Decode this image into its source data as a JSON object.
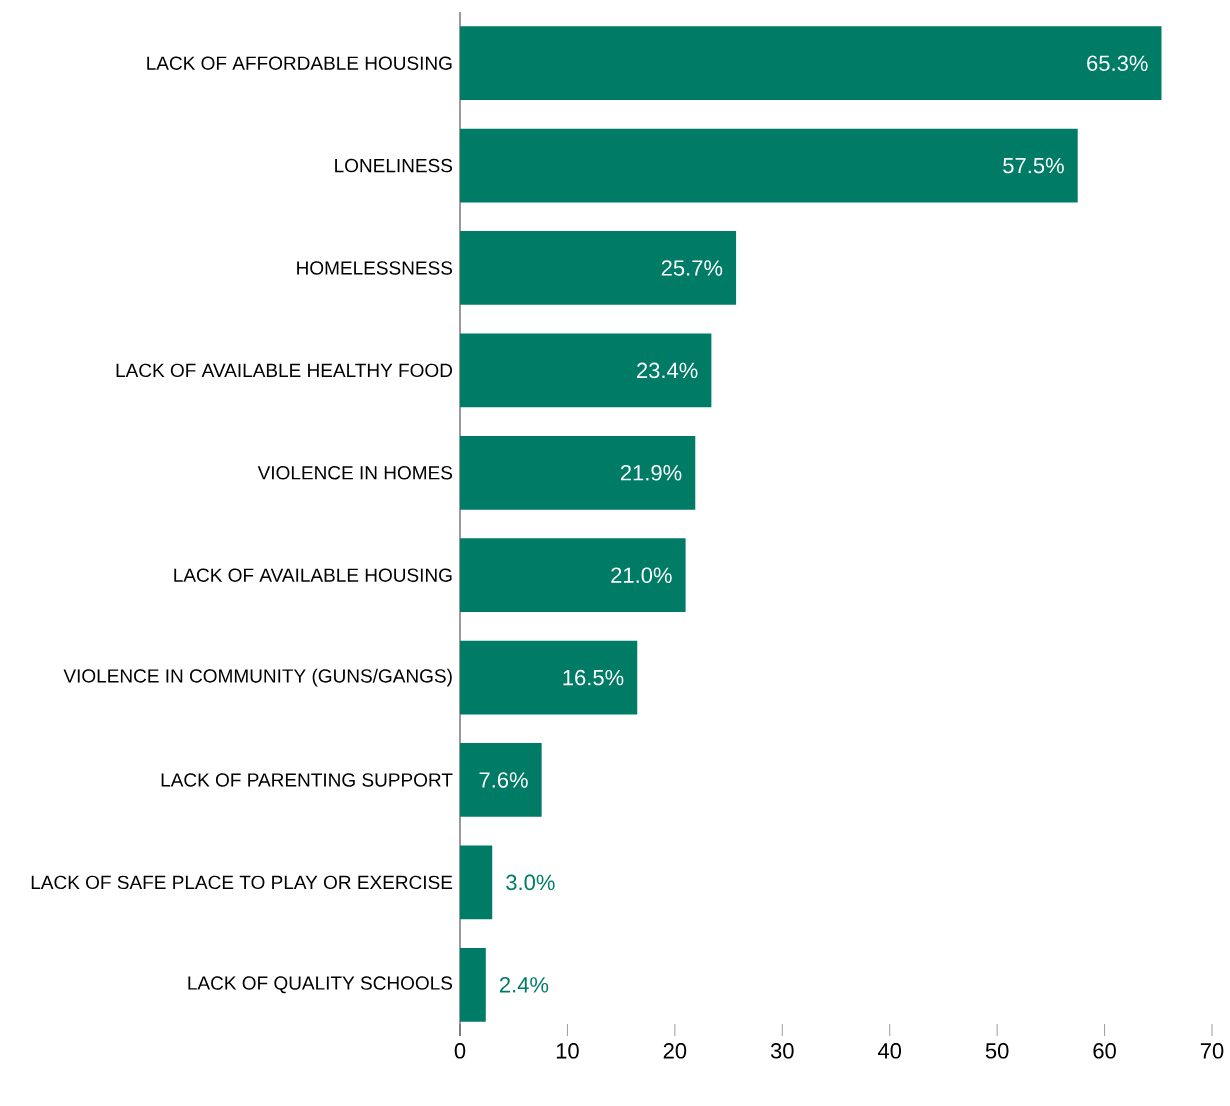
{
  "chart_data": {
    "type": "bar",
    "orientation": "horizontal",
    "categories": [
      "LACK OF AFFORDABLE HOUSING",
      "LONELINESS",
      "HOMELESSNESS",
      "LACK OF AVAILABLE HEALTHY FOOD",
      "VIOLENCE IN HOMES",
      "LACK OF AVAILABLE HOUSING",
      "VIOLENCE IN COMMUNITY (GUNS/GANGS)",
      "LACK OF PARENTING SUPPORT",
      "LACK OF SAFE PLACE TO PLAY OR EXERCISE",
      "LACK OF QUALITY SCHOOLS"
    ],
    "values": [
      65.3,
      57.5,
      25.7,
      23.4,
      21.9,
      21.0,
      16.5,
      7.6,
      3.0,
      2.4
    ],
    "value_labels": [
      "65.3%",
      "57.5%",
      "25.7%",
      "23.4%",
      "21.9%",
      "21.0%",
      "16.5%",
      "7.6%",
      "3.0%",
      "2.4%"
    ],
    "color": "#007b66",
    "xlim": [
      0,
      70
    ],
    "xticks": [
      0,
      10,
      20,
      30,
      40,
      50,
      60,
      70
    ]
  }
}
